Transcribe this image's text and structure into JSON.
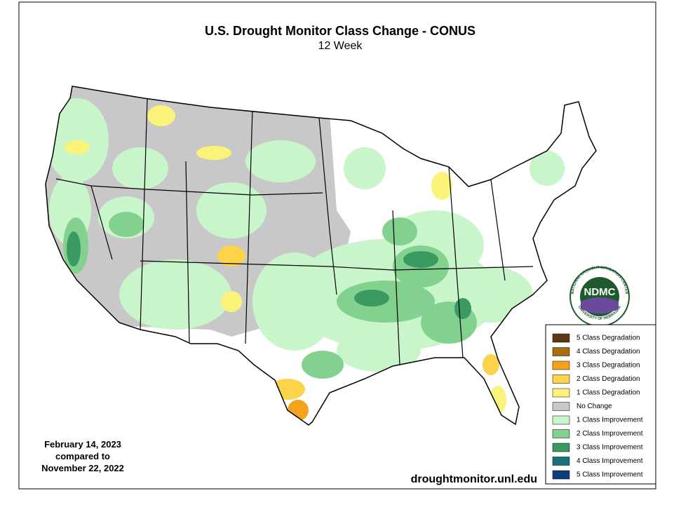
{
  "header": {
    "title": "U.S. Drought Monitor Class Change - CONUS",
    "subtitle": "12 Week"
  },
  "legend": {
    "items": [
      {
        "label": "5 Class Degradation",
        "color": "#5c3a0e"
      },
      {
        "label": "4 Class Degradation",
        "color": "#a86d12"
      },
      {
        "label": "3 Class Degradation",
        "color": "#f7a21b"
      },
      {
        "label": "2 Class Degradation",
        "color": "#fcd34a"
      },
      {
        "label": "1 Class Degradation",
        "color": "#fbf27a"
      },
      {
        "label": "No Change",
        "color": "#c8c8c8"
      },
      {
        "label": "1 Class Improvement",
        "color": "#c9f5cb"
      },
      {
        "label": "2 Class Improvement",
        "color": "#82d18f"
      },
      {
        "label": "3 Class Improvement",
        "color": "#3a9a62"
      },
      {
        "label": "4 Class Improvement",
        "color": "#17707a"
      },
      {
        "label": "5 Class Improvement",
        "color": "#0d3f7a"
      }
    ]
  },
  "dates": {
    "lines": [
      "February 14, 2023",
      "compared to",
      "November 22, 2022"
    ]
  },
  "source": "droughtmonitor.unl.edu",
  "logo": {
    "abbr": "NDMC",
    "ring_top": "NATIONAL DROUGHT MITIGATION CENTER",
    "ring_bottom": "UNIVERSITY OF NEBRASKA"
  }
}
